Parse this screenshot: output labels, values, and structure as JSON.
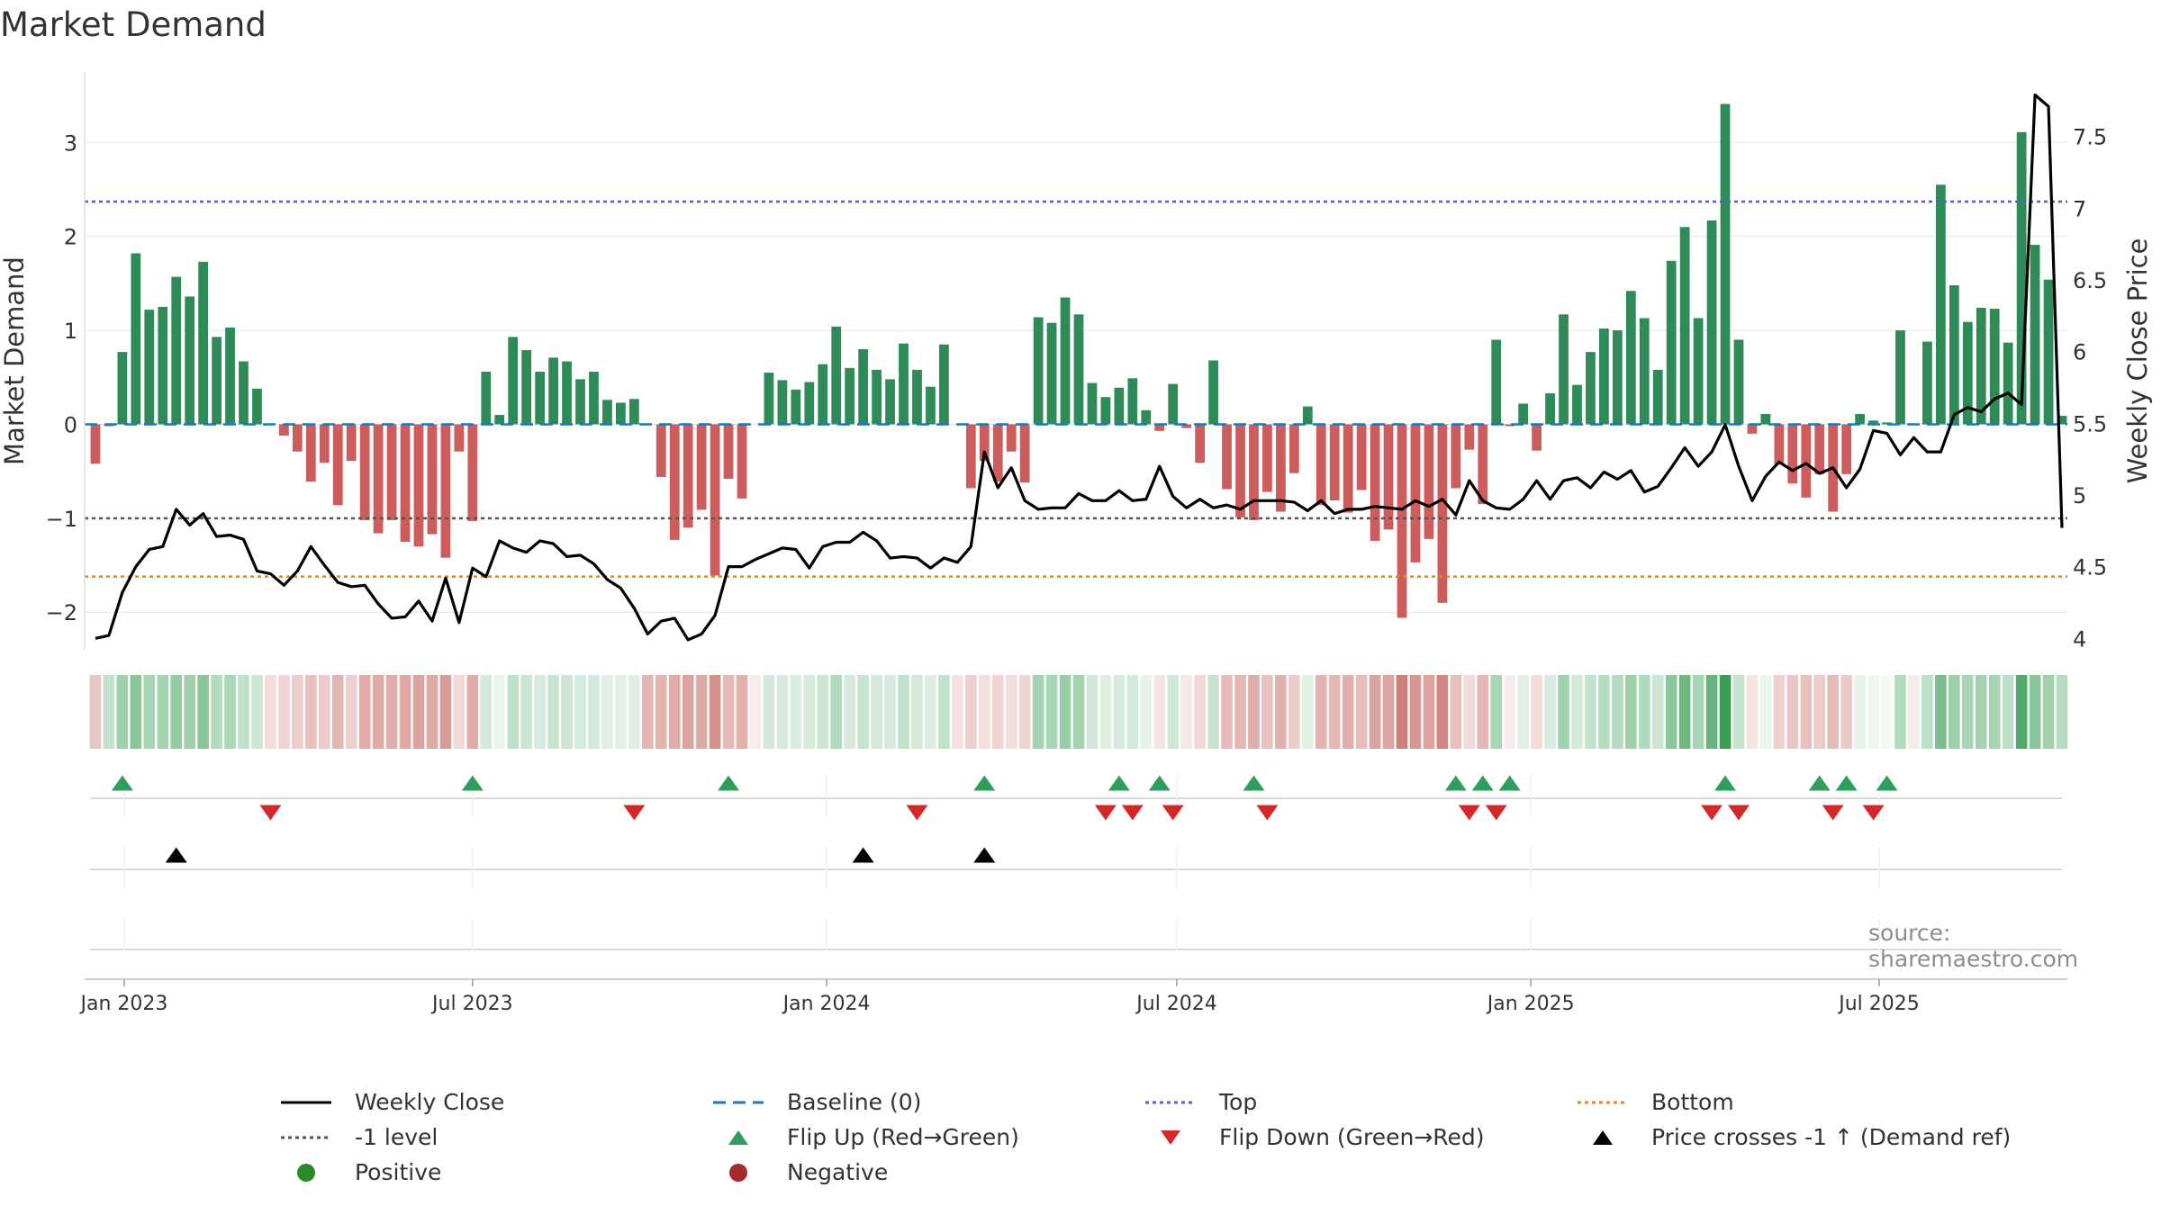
{
  "title": "Market Demand",
  "source": "source: sharemaestro.com",
  "chart_data": {
    "type": "bar",
    "title": "Market Demand",
    "ylabel": "Market Demand",
    "y2label": "Weekly Close Price",
    "ylim": [
      -2.4,
      3.75
    ],
    "y2lim": [
      3.92,
      7.95
    ],
    "yticks": [
      -2,
      -1,
      0,
      1,
      2,
      3
    ],
    "ytick_labels": [
      "−2",
      "−1",
      "0",
      "1",
      "2",
      "3"
    ],
    "y2ticks": [
      4,
      4.5,
      5,
      5.5,
      6,
      6.5,
      7,
      7.5
    ],
    "y2tick_labels": [
      "4",
      "4.5",
      "5",
      "5.5",
      "6",
      "6.5",
      "7",
      "7.5"
    ],
    "x_start": "2022-12-19",
    "week_count": 146,
    "x_range_weeks": [
      -0.8,
      146.4
    ],
    "xticks": [
      {
        "label": "Jan 2023",
        "week": 2.14
      },
      {
        "label": "Jul 2023",
        "week": 28.0
      },
      {
        "label": "Jan 2024",
        "week": 54.29
      },
      {
        "label": "Jul 2024",
        "week": 80.29
      },
      {
        "label": "Jan 2025",
        "week": 106.57
      },
      {
        "label": "Jul 2025",
        "week": 132.43
      }
    ],
    "reference_lines": {
      "top": 2.37,
      "bottom": -1.62,
      "minus_one": -1,
      "baseline": 0
    },
    "series": [
      {
        "name": "Market Demand",
        "values": [
          -0.42,
          -0.02,
          0.77,
          1.82,
          1.22,
          1.25,
          1.57,
          1.36,
          1.73,
          0.93,
          1.03,
          0.67,
          0.38,
          0,
          -0.12,
          -0.29,
          -0.61,
          -0.41,
          -0.86,
          -0.39,
          -1.02,
          -1.16,
          -1.02,
          -1.25,
          -1.3,
          -1.17,
          -1.42,
          -0.29,
          -1.03,
          0.56,
          0.1,
          0.93,
          0.79,
          0.56,
          0.71,
          0.67,
          0.48,
          0.56,
          0.26,
          0.23,
          0.27,
          0,
          -0.56,
          -1.23,
          -1.1,
          -0.91,
          -1.61,
          -0.58,
          -0.79,
          0,
          0.55,
          0.47,
          0.37,
          0.45,
          0.64,
          1.04,
          0.6,
          0.8,
          0.58,
          0.48,
          0.86,
          0.58,
          0.4,
          0.85,
          0,
          -0.68,
          -0.39,
          -0.61,
          -0.29,
          -0.62,
          1.14,
          1.08,
          1.35,
          1.17,
          0.44,
          0.29,
          0.39,
          0.49,
          0.15,
          -0.07,
          0.43,
          -0.04,
          -0.41,
          0.68,
          -0.69,
          -0.99,
          -1.02,
          -0.72,
          -0.93,
          -0.52,
          0.19,
          -0.86,
          -0.81,
          -0.94,
          -0.7,
          -1.24,
          -1.12,
          -2.06,
          -1.47,
          -1.22,
          -1.9,
          -0.68,
          -0.27,
          -0.85,
          0.9,
          -0.02,
          0.22,
          -0.28,
          0.33,
          1.17,
          0.42,
          0.77,
          1.02,
          1.0,
          1.42,
          1.13,
          0.58,
          1.74,
          2.1,
          1.13,
          2.17,
          3.41,
          0.9,
          -0.1,
          0.11,
          -0.43,
          -0.63,
          -0.78,
          -0.53,
          -0.93,
          -0.53,
          0.11,
          0.04,
          0.02,
          1.0,
          0,
          0.88,
          2.55,
          1.48,
          1.09,
          1.24,
          1.23,
          0.87,
          3.11,
          1.91,
          1.54,
          0.09
        ]
      },
      {
        "name": "Weekly Close",
        "values": [
          4,
          4.02,
          4.32,
          4.5,
          4.62,
          4.64,
          4.9,
          4.79,
          4.87,
          4.71,
          4.72,
          4.69,
          4.47,
          4.45,
          4.37,
          4.47,
          4.64,
          4.51,
          4.39,
          4.36,
          4.37,
          4.24,
          4.14,
          4.15,
          4.26,
          4.12,
          4.42,
          4.11,
          4.49,
          4.43,
          4.68,
          4.63,
          4.6,
          4.68,
          4.66,
          4.57,
          4.58,
          4.52,
          4.41,
          4.35,
          4.21,
          4.03,
          4.12,
          4.14,
          3.99,
          4.03,
          4.16,
          4.5,
          4.5,
          4.55,
          4.59,
          4.63,
          4.62,
          4.49,
          4.64,
          4.67,
          4.67,
          4.74,
          4.68,
          4.56,
          4.57,
          4.56,
          4.49,
          4.56,
          4.53,
          4.64,
          5.3,
          5.05,
          5.19,
          4.96,
          4.9,
          4.91,
          4.91,
          5.01,
          4.96,
          4.96,
          5.03,
          4.96,
          4.97,
          5.2,
          4.99,
          4.91,
          4.97,
          4.91,
          4.93,
          4.9,
          4.96,
          4.96,
          4.96,
          4.95,
          4.89,
          4.96,
          4.87,
          4.9,
          4.9,
          4.92,
          4.91,
          4.9,
          4.96,
          4.92,
          4.97,
          4.86,
          5.1,
          4.96,
          4.91,
          4.9,
          4.97,
          5.1,
          4.97,
          5.1,
          5.12,
          5.05,
          5.16,
          5.11,
          5.17,
          5.02,
          5.06,
          5.19,
          5.33,
          5.2,
          5.3,
          5.49,
          5.2,
          4.96,
          5.13,
          5.23,
          5.17,
          5.22,
          5.15,
          5.19,
          5.05,
          5.18,
          5.45,
          5.43,
          5.28,
          5.4,
          5.3,
          5.3,
          5.56,
          5.61,
          5.58,
          5.67,
          5.71,
          5.63,
          7.79,
          7.71,
          4.77
        ]
      }
    ],
    "band_shades": [
      "#e8c7c4",
      "#c1e1c9",
      "#9fd2ac",
      "#88c79a",
      "#a7d5b3",
      "#a5d4b1",
      "#93cca2",
      "#9ecfa9",
      "#89c79b",
      "#b1dbbc",
      "#aad7b6",
      "#bde0c7",
      "#cce7d4",
      "#f1dcda",
      "#f0d5d2",
      "#edcdca",
      "#e6c1be",
      "#ebcbc8",
      "#e3b5b2",
      "#eccecb",
      "#e1aba8",
      "#e0aba7",
      "#e1aca9",
      "#dea9a5",
      "#dca39f",
      "#dfa9a5",
      "#d99d99",
      "#f0d9d6",
      "#e1aba8",
      "#d4ead9",
      "#ebf4ed",
      "#c0e1c8",
      "#cae5d1",
      "#d5eadb",
      "#c7e4cf",
      "#cce6d3",
      "#d4eadb",
      "#d4e9da",
      "#e1f0e4",
      "#e3f0e6",
      "#e0efe3",
      "#e6b4b0",
      "#e5b3af",
      "#e0aaa6",
      "#dca29e",
      "#deaaa5",
      "#d4908a",
      "#e6b9b6",
      "#e2afab",
      "#f6eceb",
      "#d3eada",
      "#d6ebdc",
      "#d9edde",
      "#d5ead9",
      "#cbe6d2",
      "#b2dbbd",
      "#d3e9d9",
      "#c7e4ce",
      "#d4e9da",
      "#d7ebdd",
      "#c1e1c9",
      "#d2e9d8",
      "#daedde",
      "#c2e2ca",
      "#f2e1df",
      "#edcfcc",
      "#f3dfdc",
      "#efd4d2",
      "#f1dcd9",
      "#efd6d3",
      "#a3d3b0",
      "#a8d5b4",
      "#96cda5",
      "#a2d2ae",
      "#cfe8d5",
      "#dcefe1",
      "#d6ebdb",
      "#d3e9d9",
      "#e8f4eb",
      "#f4e5e3",
      "#d0e8d6",
      "#f5e7e5",
      "#f0d8d5",
      "#c6e3cd",
      "#e6bab6",
      "#e4b5b1",
      "#e1acaa",
      "#e9c1bf",
      "#e3b1ad",
      "#ecccc9",
      "#e0f0e4",
      "#e3b4b0",
      "#e4b7b3",
      "#e1aeab",
      "#e7bcb8",
      "#dba39f",
      "#dda5a1",
      "#cd7f7a",
      "#d69792",
      "#dba29e",
      "#d18882",
      "#e8bfbb",
      "#f1dbd9",
      "#e5b6b3",
      "#a9d6b4",
      "#f6eceb",
      "#e1f0e4",
      "#f1dcda",
      "#d8ecde",
      "#a0d1ad",
      "#d1e9d7",
      "#c3e2ca",
      "#b5dcbf",
      "#b5dcc0",
      "#9ed1aa",
      "#b0dabc",
      "#cce6d3",
      "#8bc79c",
      "#6eb981",
      "#a7d4b3",
      "#66b47b",
      "#3c9d53",
      "#c5e3cd",
      "#f4e4e2",
      "#e9f4ec",
      "#edd1ce",
      "#e9c6c3",
      "#e8c1bd",
      "#ecccc8",
      "#e6bab6",
      "#ebcbc8",
      "#e6f3e9",
      "#eef6f0",
      "#f2f8f3",
      "#b2dbbd",
      "#f6eceb",
      "#bce0c5",
      "#7abf8b",
      "#9cd0a8",
      "#aad6b5",
      "#a3d3ae",
      "#a7d4b3",
      "#bddfc5",
      "#55ab6c",
      "#88c79a",
      "#a0d1ab",
      "#b5dcc0"
    ],
    "flip_up_weeks": [
      2,
      28,
      47,
      66,
      76,
      79,
      86,
      101,
      103,
      105,
      121,
      128,
      130,
      133
    ],
    "flip_down_weeks": [
      13,
      40,
      61,
      75,
      77,
      80,
      87,
      102,
      104,
      120,
      122,
      129,
      132
    ],
    "price_cross_weeks": [
      6,
      57,
      66
    ]
  },
  "legend": {
    "items": [
      {
        "label": "Weekly Close",
        "symbol": "line-solid",
        "color": "#000000"
      },
      {
        "label": "Baseline (0)",
        "symbol": "line-dashed",
        "color": "#1f77b4"
      },
      {
        "label": "Top",
        "symbol": "line-dotted",
        "color": "#5a5ad6"
      },
      {
        "label": "Bottom",
        "symbol": "line-dotted",
        "color": "#e08a1e"
      },
      {
        "label": "-1 level",
        "symbol": "line-dotted",
        "color": "#555555"
      },
      {
        "label": "Flip Up (Red→Green)",
        "symbol": "triangle-up",
        "color": "#2ca05a"
      },
      {
        "label": "Flip Down (Green→Red)",
        "symbol": "triangle-down",
        "color": "#d62728"
      },
      {
        "label": "Price crosses -1 ↑ (Demand ref)",
        "symbol": "triangle-up",
        "color": "#000000"
      },
      {
        "label": "Positive",
        "symbol": "circle",
        "color": "#2a8a2a"
      },
      {
        "label": "Negative",
        "symbol": "circle",
        "color": "#a52a2a"
      }
    ]
  },
  "colors": {
    "positive_bar": "#2e8b57",
    "negative_bar": "#cd5c5c",
    "price_line": "#000000",
    "grid": "#e6e6e6"
  }
}
